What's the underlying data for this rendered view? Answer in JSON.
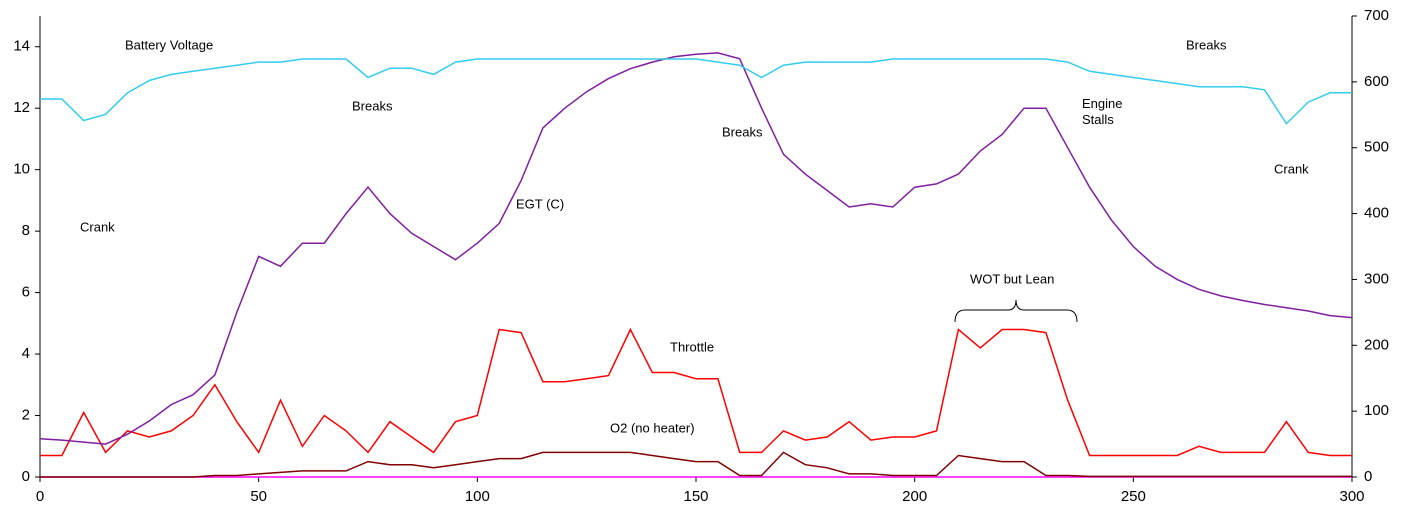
{
  "chart_data": {
    "type": "line",
    "x": [
      0,
      5,
      10,
      15,
      20,
      25,
      30,
      35,
      40,
      45,
      50,
      55,
      60,
      65,
      70,
      75,
      80,
      85,
      90,
      95,
      100,
      105,
      110,
      115,
      120,
      125,
      130,
      135,
      140,
      145,
      150,
      155,
      160,
      165,
      170,
      175,
      180,
      185,
      190,
      195,
      200,
      205,
      210,
      215,
      220,
      225,
      230,
      235,
      240,
      245,
      250,
      255,
      260,
      265,
      270,
      275,
      280,
      285,
      290,
      295,
      300
    ],
    "xlim": [
      0,
      300
    ],
    "xticks": [
      0,
      50,
      100,
      150,
      200,
      250,
      300
    ],
    "ylim": [
      0,
      15
    ],
    "yticks": [
      0,
      2,
      4,
      6,
      8,
      10,
      12,
      14
    ],
    "y2lim": [
      0,
      700
    ],
    "y2ticks": [
      0,
      100,
      200,
      300,
      400,
      500,
      600,
      700
    ],
    "series": [
      {
        "name": "Battery Voltage",
        "color": "#33ccee",
        "values": [
          12.3,
          12.3,
          11.6,
          11.8,
          12.5,
          12.9,
          13.1,
          13.2,
          13.3,
          13.4,
          13.5,
          13.5,
          13.6,
          13.6,
          13.6,
          13.0,
          13.3,
          13.3,
          13.1,
          13.5,
          13.6,
          13.6,
          13.6,
          13.6,
          13.6,
          13.6,
          13.6,
          13.6,
          13.6,
          13.6,
          13.6,
          13.5,
          13.4,
          13.0,
          13.4,
          13.5,
          13.5,
          13.5,
          13.5,
          13.6,
          13.6,
          13.6,
          13.6,
          13.6,
          13.6,
          13.6,
          13.6,
          13.5,
          13.2,
          13.1,
          13.0,
          12.9,
          12.8,
          12.7,
          12.7,
          12.7,
          12.6,
          11.5,
          12.2,
          12.5,
          12.5
        ]
      },
      {
        "name": "EGT (C)",
        "color": "#7f1f9f",
        "axis": "y2",
        "values": [
          58,
          56,
          53,
          50,
          65,
          85,
          110,
          125,
          155,
          250,
          335,
          320,
          355,
          355,
          400,
          440,
          400,
          370,
          350,
          330,
          355,
          385,
          450,
          530,
          560,
          585,
          605,
          620,
          630,
          638,
          642,
          644,
          635,
          560,
          490,
          460,
          435,
          410,
          415,
          410,
          440,
          445,
          460,
          495,
          520,
          560,
          560,
          500,
          440,
          390,
          350,
          320,
          300,
          285,
          275,
          268,
          262,
          257,
          252,
          245,
          242
        ]
      },
      {
        "name": "Throttle",
        "color": "#ff0000",
        "values": [
          0.7,
          0.7,
          2.1,
          0.8,
          1.5,
          1.3,
          1.5,
          2.0,
          3.0,
          1.8,
          0.8,
          2.5,
          1.0,
          2.0,
          1.5,
          0.8,
          1.8,
          1.3,
          0.8,
          1.8,
          2.0,
          4.8,
          4.7,
          3.1,
          3.1,
          3.2,
          3.3,
          4.8,
          3.4,
          3.4,
          3.2,
          3.2,
          0.8,
          0.8,
          1.5,
          1.2,
          1.3,
          1.8,
          1.2,
          1.3,
          1.3,
          1.5,
          4.8,
          4.2,
          4.8,
          4.8,
          4.7,
          2.5,
          0.7,
          0.7,
          0.7,
          0.7,
          0.7,
          1.0,
          0.8,
          0.8,
          0.8,
          1.8,
          0.8,
          0.7,
          0.7
        ]
      },
      {
        "name": "O2 (no heater)",
        "color": "#800000",
        "values": [
          0,
          0,
          0,
          0,
          0,
          0,
          0,
          0,
          0.05,
          0.05,
          0.1,
          0.15,
          0.2,
          0.2,
          0.2,
          0.5,
          0.4,
          0.4,
          0.3,
          0.4,
          0.5,
          0.6,
          0.6,
          0.8,
          0.8,
          0.8,
          0.8,
          0.8,
          0.7,
          0.6,
          0.5,
          0.5,
          0.05,
          0.05,
          0.8,
          0.4,
          0.3,
          0.1,
          0.1,
          0.05,
          0.05,
          0.05,
          0.7,
          0.6,
          0.5,
          0.5,
          0.05,
          0.05,
          0.02,
          0.02,
          0.02,
          0.02,
          0.02,
          0.02,
          0.02,
          0.02,
          0.02,
          0.02,
          0.02,
          0.02,
          0.02
        ]
      },
      {
        "color": "#ff00ff",
        "values": [
          0,
          0,
          0,
          0,
          0,
          0,
          0,
          0,
          0,
          0,
          0,
          0,
          0,
          0,
          0,
          0,
          0,
          0,
          0,
          0,
          0,
          0,
          0,
          0,
          0,
          0,
          0,
          0,
          0,
          0,
          0,
          0,
          0,
          0,
          0,
          0,
          0,
          0,
          0,
          0,
          0,
          0,
          0,
          0,
          0,
          0,
          0,
          0,
          0,
          0,
          0,
          0,
          0,
          0,
          0,
          0,
          0,
          0,
          0,
          0,
          0
        ]
      }
    ],
    "annotations": [
      "Breaks",
      "Breaks",
      "Breaks",
      "Crank",
      "Crank",
      "Engine Stalls",
      "WOT but Lean"
    ]
  }
}
